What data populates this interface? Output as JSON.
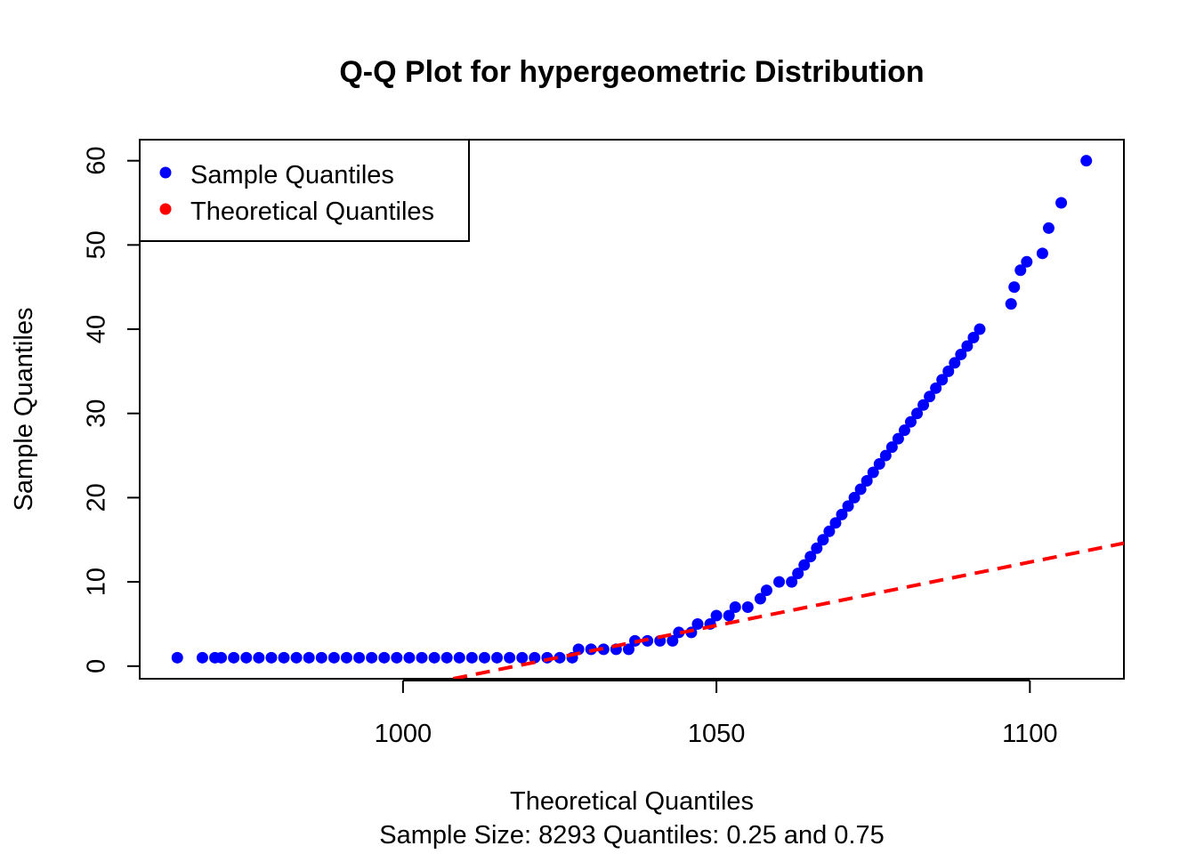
{
  "chart_data": {
    "type": "scatter",
    "title": "Q-Q Plot for hypergeometric Distribution",
    "xlabel": "Theoretical Quantiles",
    "ylabel": "Sample Quantiles",
    "subtitle": "Sample Size: 8293 Quantiles: 0.25 and 0.75",
    "xlim": [
      958,
      1115
    ],
    "ylim": [
      -1.5,
      62.5
    ],
    "xticks": [
      1000,
      1050,
      1100
    ],
    "yticks": [
      0,
      10,
      20,
      30,
      40,
      50,
      60
    ],
    "grid": false,
    "legend": {
      "position": "top-left",
      "entries": [
        {
          "label": "Sample Quantiles",
          "color": "#0000ff"
        },
        {
          "label": "Theoretical Quantiles",
          "color": "#ff0000"
        }
      ]
    },
    "series": [
      {
        "name": "Sample Quantiles",
        "color": "#0000ff",
        "points": [
          [
            964,
            1
          ],
          [
            968,
            1
          ],
          [
            970,
            1
          ],
          [
            971,
            1
          ],
          [
            973,
            1
          ],
          [
            975,
            1
          ],
          [
            977,
            1
          ],
          [
            979,
            1
          ],
          [
            981,
            1
          ],
          [
            983,
            1
          ],
          [
            985,
            1
          ],
          [
            987,
            1
          ],
          [
            989,
            1
          ],
          [
            991,
            1
          ],
          [
            993,
            1
          ],
          [
            995,
            1
          ],
          [
            997,
            1
          ],
          [
            999,
            1
          ],
          [
            1001,
            1
          ],
          [
            1003,
            1
          ],
          [
            1005,
            1
          ],
          [
            1007,
            1
          ],
          [
            1009,
            1
          ],
          [
            1011,
            1
          ],
          [
            1013,
            1
          ],
          [
            1015,
            1
          ],
          [
            1017,
            1
          ],
          [
            1019,
            1
          ],
          [
            1021,
            1
          ],
          [
            1023,
            1
          ],
          [
            1025,
            1
          ],
          [
            1027,
            1
          ],
          [
            1028,
            2
          ],
          [
            1030,
            2
          ],
          [
            1032,
            2
          ],
          [
            1034,
            2
          ],
          [
            1036,
            2
          ],
          [
            1037,
            3
          ],
          [
            1039,
            3
          ],
          [
            1041,
            3
          ],
          [
            1043,
            3
          ],
          [
            1044,
            4
          ],
          [
            1046,
            4
          ],
          [
            1047,
            5
          ],
          [
            1049,
            5
          ],
          [
            1050,
            6
          ],
          [
            1052,
            6
          ],
          [
            1053,
            7
          ],
          [
            1055,
            7
          ],
          [
            1057,
            8
          ],
          [
            1058,
            9
          ],
          [
            1060,
            10
          ],
          [
            1062,
            10
          ],
          [
            1063,
            11
          ],
          [
            1064,
            12
          ],
          [
            1065,
            13
          ],
          [
            1066,
            14
          ],
          [
            1067,
            15
          ],
          [
            1068,
            16
          ],
          [
            1069,
            17
          ],
          [
            1070,
            18
          ],
          [
            1071,
            19
          ],
          [
            1072,
            20
          ],
          [
            1073,
            21
          ],
          [
            1074,
            22
          ],
          [
            1075,
            23
          ],
          [
            1076,
            24
          ],
          [
            1077,
            25
          ],
          [
            1078,
            26
          ],
          [
            1079,
            27
          ],
          [
            1080,
            28
          ],
          [
            1081,
            29
          ],
          [
            1082,
            30
          ],
          [
            1083,
            31
          ],
          [
            1084,
            32
          ],
          [
            1085,
            33
          ],
          [
            1086,
            34
          ],
          [
            1087,
            35
          ],
          [
            1088,
            36
          ],
          [
            1089,
            37
          ],
          [
            1090,
            38
          ],
          [
            1091,
            39
          ],
          [
            1092,
            40
          ],
          [
            1097,
            43
          ],
          [
            1097.5,
            45
          ],
          [
            1098.5,
            47
          ],
          [
            1099.5,
            48
          ],
          [
            1102,
            49
          ],
          [
            1103,
            52
          ],
          [
            1105,
            55
          ],
          [
            1109,
            60
          ]
        ]
      },
      {
        "name": "Theoretical Quantiles",
        "color": "#ff0000",
        "line": {
          "x1": 1008,
          "y1": -1.5,
          "x2": 1115,
          "y2": 14.6,
          "style": "dashed"
        }
      }
    ]
  }
}
